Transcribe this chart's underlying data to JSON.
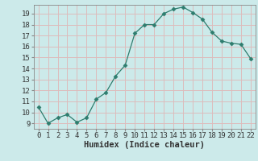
{
  "x": [
    0,
    1,
    2,
    3,
    4,
    5,
    6,
    7,
    8,
    9,
    10,
    11,
    12,
    13,
    14,
    15,
    16,
    17,
    18,
    19,
    20,
    21,
    22
  ],
  "y": [
    10.5,
    9.0,
    9.5,
    9.8,
    9.1,
    9.5,
    11.2,
    11.8,
    13.3,
    14.3,
    17.2,
    18.0,
    18.0,
    19.0,
    19.4,
    19.6,
    19.1,
    18.5,
    17.3,
    16.5,
    16.3,
    16.2,
    14.9
  ],
  "line_color": "#2e7d6e",
  "marker": "D",
  "marker_size": 2.5,
  "xlabel": "Humidex (Indice chaleur)",
  "xlim": [
    -0.5,
    22.5
  ],
  "ylim": [
    8.5,
    19.8
  ],
  "yticks": [
    9,
    10,
    11,
    12,
    13,
    14,
    15,
    16,
    17,
    18,
    19
  ],
  "xticks": [
    0,
    1,
    2,
    3,
    4,
    5,
    6,
    7,
    8,
    9,
    10,
    11,
    12,
    13,
    14,
    15,
    16,
    17,
    18,
    19,
    20,
    21,
    22
  ],
  "bg_color": "#cceaea",
  "grid_color": "#ddbcbc",
  "tick_fontsize": 6.5,
  "xlabel_fontsize": 7.5
}
